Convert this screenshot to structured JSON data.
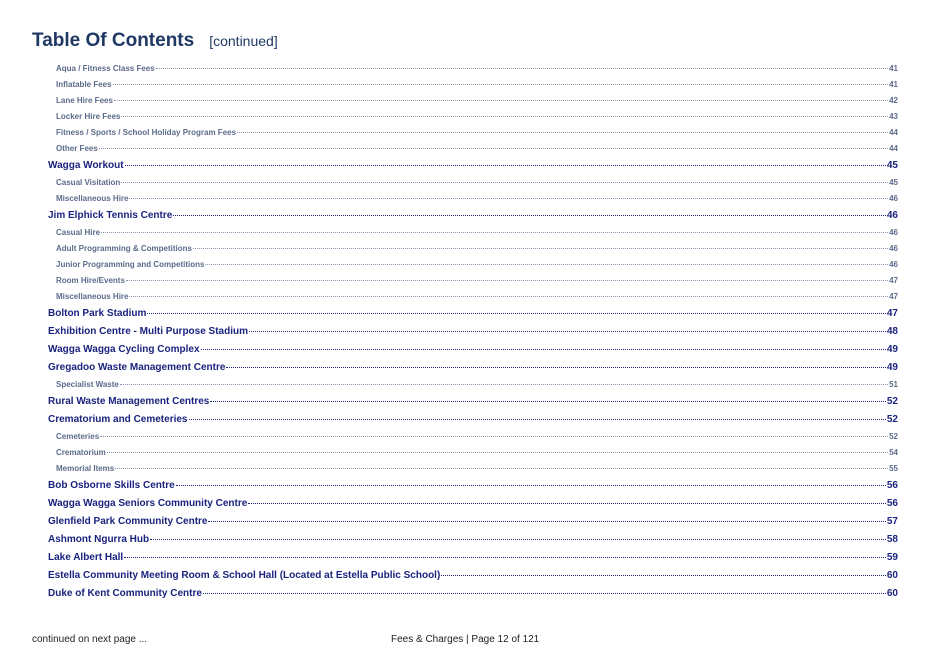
{
  "header": {
    "title": "Table Of Contents",
    "subtitle": "[continued]"
  },
  "toc": [
    {
      "level": 2,
      "label": "Aqua / Fitness Class Fees",
      "page": "41"
    },
    {
      "level": 2,
      "label": "Inflatable Fees",
      "page": "41"
    },
    {
      "level": 2,
      "label": "Lane Hire Fees",
      "page": "42"
    },
    {
      "level": 2,
      "label": "Locker Hire Fees",
      "page": "43"
    },
    {
      "level": 2,
      "label": "Fitness / Sports / School Holiday Program Fees",
      "page": "44"
    },
    {
      "level": 2,
      "label": "Other Fees",
      "page": "44"
    },
    {
      "level": 1,
      "label": "Wagga Workout",
      "page": "45"
    },
    {
      "level": 2,
      "label": "Casual Visitation",
      "page": "45"
    },
    {
      "level": 2,
      "label": "Miscellaneous Hire",
      "page": "46"
    },
    {
      "level": 1,
      "label": "Jim Elphick Tennis Centre",
      "page": "46"
    },
    {
      "level": 2,
      "label": "Casual Hire",
      "page": "46"
    },
    {
      "level": 2,
      "label": "Adult Programming & Competitions",
      "page": "46"
    },
    {
      "level": 2,
      "label": "Junior Programming and Competitions",
      "page": "46"
    },
    {
      "level": 2,
      "label": "Room Hire/Events",
      "page": "47"
    },
    {
      "level": 2,
      "label": "Miscellaneous Hire",
      "page": "47"
    },
    {
      "level": 1,
      "label": "Bolton Park Stadium",
      "page": "47"
    },
    {
      "level": 1,
      "label": "Exhibition Centre - Multi Purpose Stadium",
      "page": "48"
    },
    {
      "level": 1,
      "label": "Wagga Wagga Cycling Complex",
      "page": "49"
    },
    {
      "level": 1,
      "label": "Gregadoo Waste Management Centre",
      "page": "49"
    },
    {
      "level": 2,
      "label": "Specialist Waste",
      "page": "51"
    },
    {
      "level": 1,
      "label": "Rural Waste Management Centres",
      "page": "52"
    },
    {
      "level": 1,
      "label": "Crematorium and Cemeteries",
      "page": "52"
    },
    {
      "level": 2,
      "label": "Cemeteries",
      "page": "52"
    },
    {
      "level": 2,
      "label": "Crematorium",
      "page": "54"
    },
    {
      "level": 2,
      "label": "Memorial Items",
      "page": "55"
    },
    {
      "level": 1,
      "label": "Bob Osborne Skills Centre",
      "page": "56"
    },
    {
      "level": 1,
      "label": "Wagga Wagga Seniors Community Centre",
      "page": "56"
    },
    {
      "level": 1,
      "label": "Glenfield Park Community Centre",
      "page": "57"
    },
    {
      "level": 1,
      "label": "Ashmont Ngurra Hub",
      "page": "58"
    },
    {
      "level": 1,
      "label": "Lake Albert Hall",
      "page": "59"
    },
    {
      "level": 1,
      "label": "Estella Community Meeting Room & School Hall (Located at Estella Public School)",
      "page": "60"
    },
    {
      "level": 1,
      "label": "Duke of Kent Community Centre",
      "page": "60"
    }
  ],
  "footer": {
    "continued": "continued on next page ...",
    "page_info": "Fees & Charges | Page 12 of 121"
  }
}
